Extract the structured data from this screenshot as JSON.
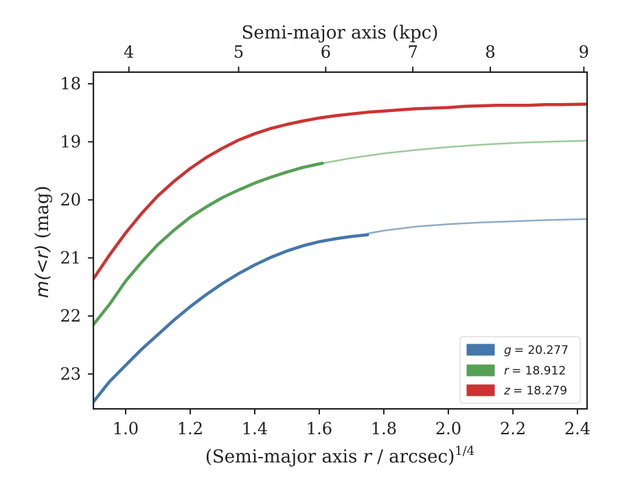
{
  "chart_data": {
    "type": "line",
    "xlabel_prefix": "(Semi-major axis ",
    "xlabel_var": "r",
    "xlabel_mid": " / arcsec)",
    "xlabel_exp": "1/4",
    "top_xlabel": "Semi-major axis (kpc)",
    "ylabel_prefix": "m(<r)",
    "ylabel_suffix": " (mag)",
    "xlim": [
      0.9,
      2.43
    ],
    "ylim": [
      23.6,
      17.8
    ],
    "y_inverted": true,
    "x_ticks": [
      1.0,
      1.2,
      1.4,
      1.6,
      1.8,
      2.0,
      2.2,
      2.4
    ],
    "x_tick_labels": [
      "1.0",
      "1.2",
      "1.4",
      "1.6",
      "1.8",
      "2.0",
      "2.2",
      "2.4"
    ],
    "y_ticks": [
      18,
      19,
      20,
      21,
      22,
      23
    ],
    "y_tick_labels": [
      "18",
      "19",
      "20",
      "21",
      "22",
      "23"
    ],
    "top_ticks": [
      4,
      5,
      6,
      7,
      8,
      9
    ],
    "top_tick_labels": [
      "4",
      "5",
      "6",
      "7",
      "8",
      "9"
    ],
    "top_tick_positions_x": [
      1.01,
      1.35,
      1.62,
      1.89,
      2.13,
      2.42
    ],
    "legend_position": "lower-right",
    "series": [
      {
        "name": "g = 20.277",
        "legend_var": "g",
        "legend_value": "= 20.277",
        "color": "#4477aa",
        "model_color": "#8fadc6",
        "x": [
          0.9,
          0.95,
          1.0,
          1.05,
          1.1,
          1.15,
          1.2,
          1.25,
          1.3,
          1.35,
          1.4,
          1.45,
          1.5,
          1.55,
          1.6,
          1.65,
          1.7,
          1.75
        ],
        "y": [
          23.48,
          23.13,
          22.85,
          22.57,
          22.32,
          22.07,
          21.84,
          21.63,
          21.44,
          21.27,
          21.12,
          20.99,
          20.88,
          20.79,
          20.72,
          20.67,
          20.63,
          20.6
        ],
        "model_x": [
          1.75,
          1.8,
          1.9,
          2.0,
          2.1,
          2.2,
          2.3,
          2.43
        ],
        "model_y": [
          20.58,
          20.53,
          20.46,
          20.42,
          20.39,
          20.37,
          20.35,
          20.33
        ]
      },
      {
        "name": "r = 18.912",
        "legend_var": "r",
        "legend_value": "= 18.912",
        "color": "#55a055",
        "model_color": "#9dca9d",
        "x": [
          0.9,
          0.95,
          1.0,
          1.05,
          1.1,
          1.15,
          1.2,
          1.25,
          1.3,
          1.35,
          1.4,
          1.45,
          1.5,
          1.55,
          1.6,
          1.61
        ],
        "y": [
          22.15,
          21.8,
          21.4,
          21.07,
          20.77,
          20.52,
          20.3,
          20.12,
          19.96,
          19.83,
          19.71,
          19.61,
          19.52,
          19.44,
          19.38,
          19.37
        ],
        "model_x": [
          1.61,
          1.7,
          1.8,
          1.9,
          2.0,
          2.1,
          2.2,
          2.3,
          2.43
        ],
        "model_y": [
          19.37,
          19.28,
          19.2,
          19.14,
          19.09,
          19.05,
          19.02,
          19.0,
          18.98
        ]
      },
      {
        "name": "z = 18.279",
        "legend_var": "z",
        "legend_value": "= 18.279",
        "color": "#cc3333",
        "x": [
          0.9,
          0.95,
          1.0,
          1.05,
          1.1,
          1.15,
          1.2,
          1.25,
          1.3,
          1.35,
          1.4,
          1.45,
          1.5,
          1.55,
          1.6,
          1.65,
          1.7,
          1.75,
          1.8,
          1.85,
          1.9,
          1.95,
          2.0,
          2.05,
          2.1,
          2.15,
          2.2,
          2.25,
          2.3,
          2.35,
          2.43
        ],
        "y": [
          21.36,
          20.95,
          20.57,
          20.23,
          19.93,
          19.68,
          19.46,
          19.27,
          19.11,
          18.97,
          18.86,
          18.77,
          18.7,
          18.64,
          18.59,
          18.55,
          18.52,
          18.49,
          18.47,
          18.45,
          18.43,
          18.42,
          18.41,
          18.39,
          18.38,
          18.37,
          18.37,
          18.37,
          18.36,
          18.36,
          18.35
        ]
      }
    ]
  }
}
